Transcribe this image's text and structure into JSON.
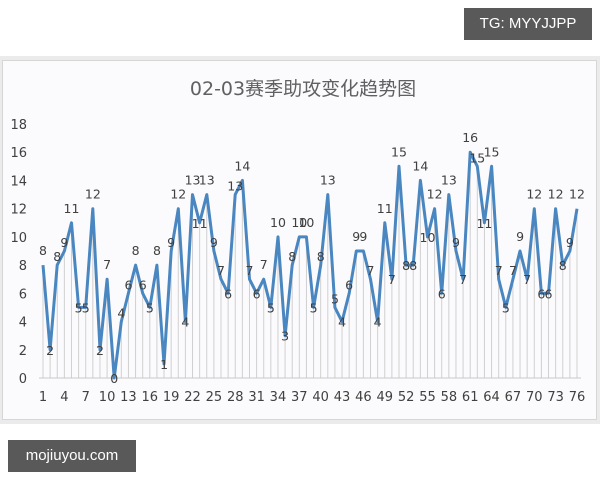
{
  "watermarks": {
    "top": "TG: MYYJJPP",
    "bottom": "mojiuyou.com"
  },
  "colors": {
    "line": "#4a86c0",
    "grid": "#d0d0d0",
    "text": "#404040",
    "title": "#606060"
  },
  "chart_data": {
    "type": "line",
    "title": "02-03赛季助攻变化趋势图",
    "xlabel": "",
    "ylabel": "",
    "ylim": [
      0,
      18
    ],
    "yticks": [
      0,
      2,
      4,
      6,
      8,
      10,
      12,
      14,
      16,
      18
    ],
    "xticks": [
      1,
      4,
      7,
      10,
      13,
      16,
      19,
      22,
      25,
      28,
      31,
      34,
      37,
      40,
      43,
      46,
      49,
      52,
      55,
      58,
      61,
      64,
      67,
      70,
      73,
      76
    ],
    "x": [
      1,
      2,
      3,
      4,
      5,
      6,
      7,
      8,
      9,
      10,
      11,
      12,
      13,
      14,
      15,
      16,
      17,
      18,
      19,
      20,
      21,
      22,
      23,
      24,
      25,
      26,
      27,
      28,
      29,
      30,
      31,
      32,
      33,
      34,
      35,
      36,
      37,
      38,
      39,
      40,
      41,
      42,
      43,
      44,
      45,
      46,
      47,
      48,
      49,
      50,
      51,
      52,
      53,
      54,
      55,
      56,
      57,
      58,
      59,
      60,
      61,
      62,
      63,
      64,
      65,
      66,
      67,
      68,
      69,
      70,
      71,
      72,
      73,
      74,
      75,
      76
    ],
    "series": [
      {
        "name": "助攻",
        "values": [
          8,
          2,
          8,
          9,
          11,
          5,
          5,
          12,
          2,
          7,
          0,
          4,
          6,
          8,
          6,
          5,
          8,
          1,
          9,
          12,
          4,
          13,
          11,
          13,
          9,
          7,
          6,
          13,
          14,
          7,
          6,
          7,
          5,
          10,
          3,
          8,
          10,
          10,
          5,
          8,
          13,
          5,
          4,
          6,
          9,
          9,
          7,
          4,
          11,
          7,
          15,
          8,
          8,
          14,
          10,
          12,
          6,
          13,
          9,
          7,
          16,
          15,
          11,
          15,
          7,
          5,
          7,
          9,
          7,
          12,
          6,
          6,
          12,
          8,
          9,
          12
        ]
      }
    ],
    "data_labels": true,
    "grid": "vertical drop lines",
    "legend": "none"
  }
}
